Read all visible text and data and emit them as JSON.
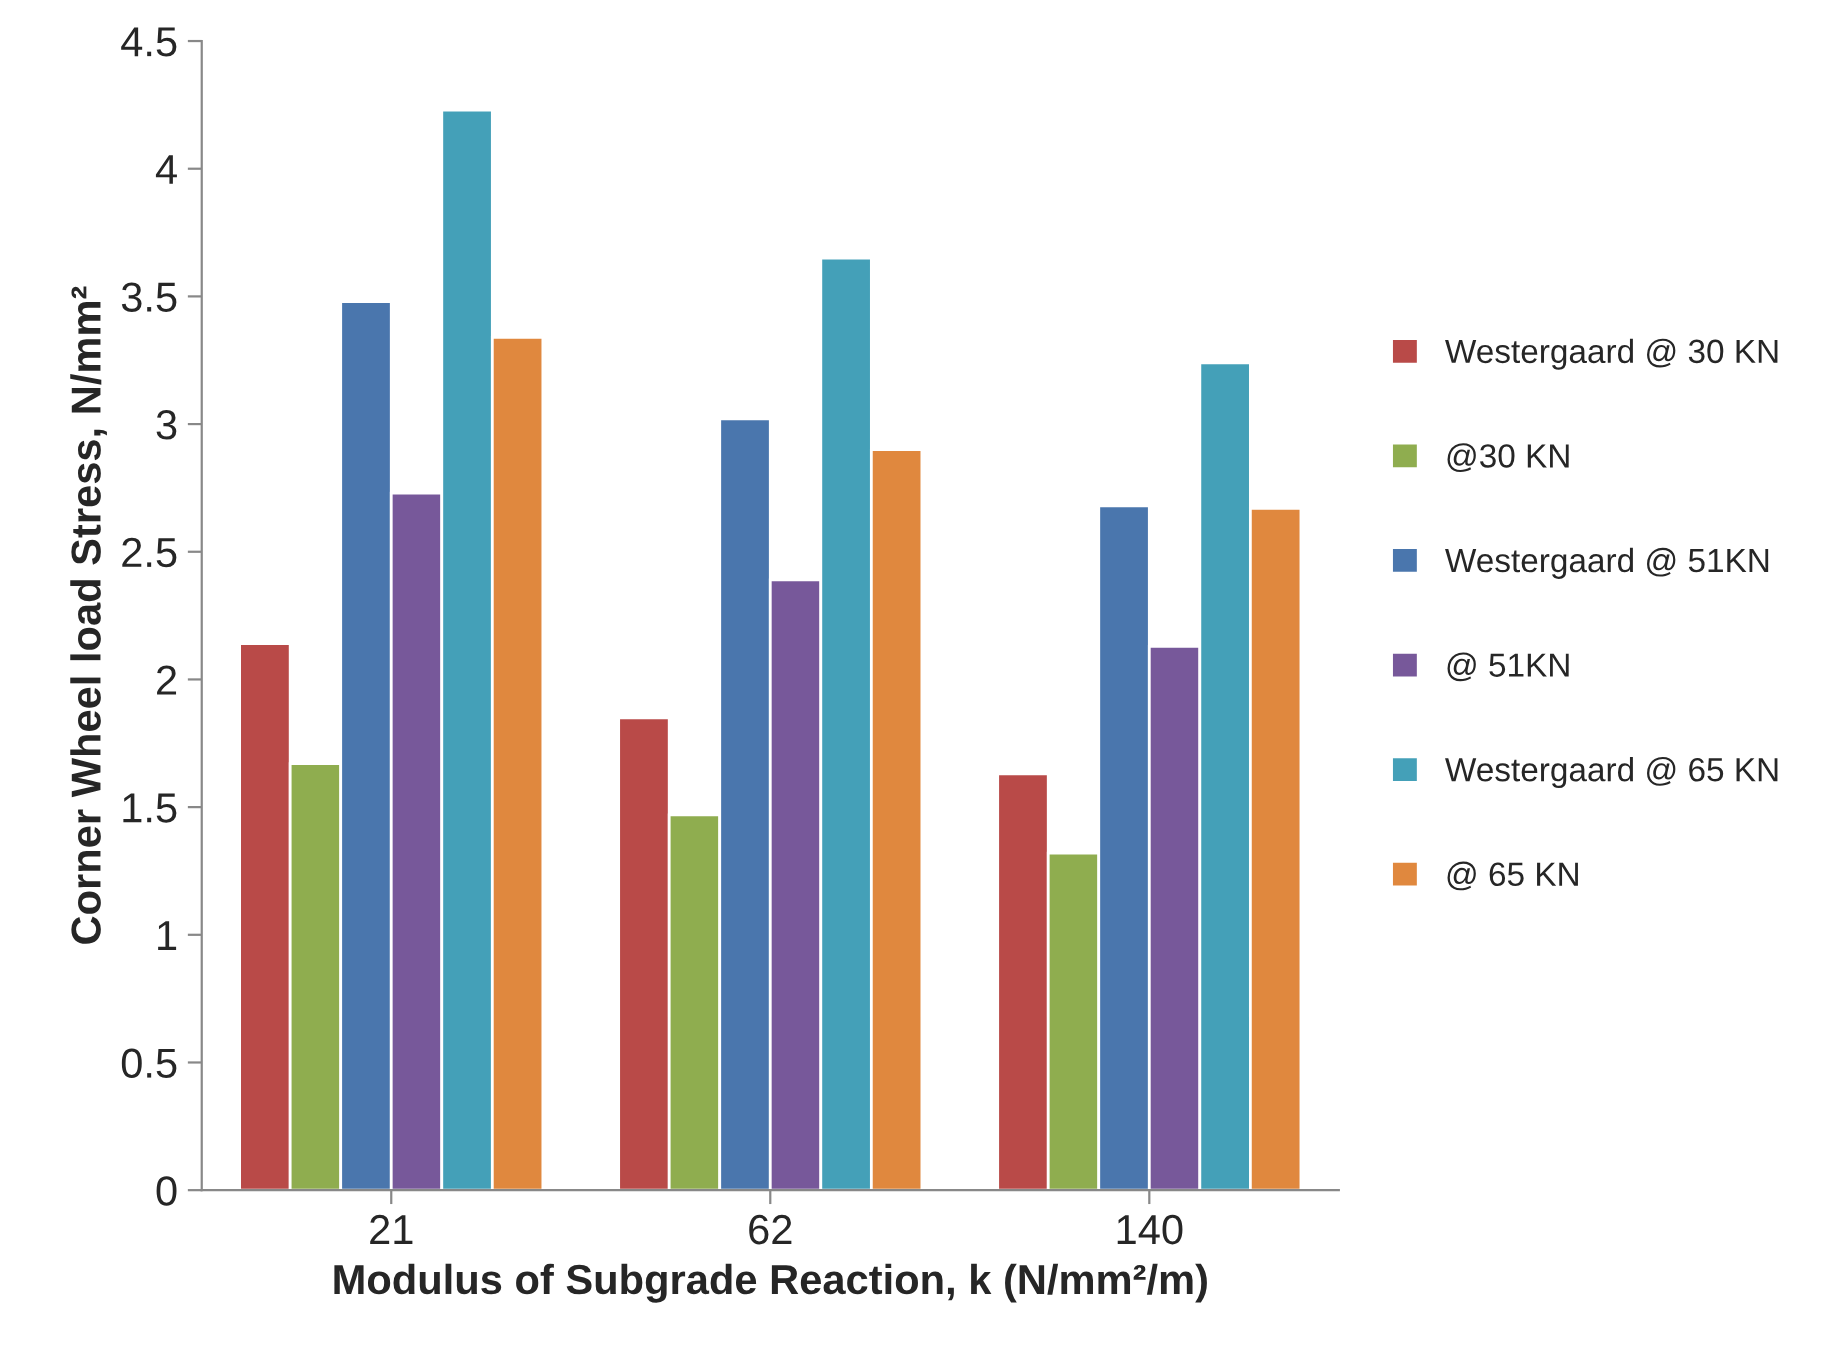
{
  "chart_data": {
    "type": "bar",
    "xlabel": "Modulus of Subgrade Reaction, k (N/mm²/m)",
    "ylabel": "Corner Wheel load Stress, N/mm²",
    "categories": [
      "21",
      "62",
      "140"
    ],
    "series": [
      {
        "name": "Westergaard @ 30 KN",
        "color": "#b94a48",
        "values": [
          2.14,
          1.85,
          1.63
        ]
      },
      {
        "name": "@30 KN",
        "color": "#8fad4f",
        "values": [
          1.67,
          1.47,
          1.32
        ]
      },
      {
        "name": "Westergaard @ 51KN",
        "color": "#4a76ad",
        "values": [
          3.48,
          3.02,
          2.68
        ]
      },
      {
        "name": "@ 51KN",
        "color": "#77589a",
        "values": [
          2.73,
          2.39,
          2.13
        ]
      },
      {
        "name": "Westergaard @ 65 KN",
        "color": "#44a0b8",
        "values": [
          4.23,
          3.65,
          3.24
        ]
      },
      {
        "name": "@ 65 KN",
        "color": "#e0883e",
        "values": [
          3.34,
          2.9,
          2.67
        ]
      }
    ],
    "ylim": [
      0,
      4.5
    ],
    "yticks": [
      0,
      0.5,
      1,
      1.5,
      2,
      2.5,
      3,
      3.5,
      4,
      4.5
    ],
    "grid": false,
    "legend": "right"
  }
}
